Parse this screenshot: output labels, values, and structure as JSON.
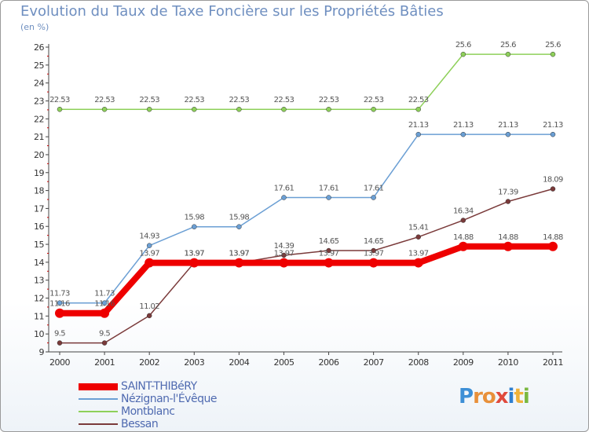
{
  "title": "Evolution du Taux de Taxe Foncière sur les Propriétés Bâties",
  "subtitle": "(en %)",
  "logo": {
    "letters": [
      {
        "ch": "P",
        "color": "#3d8fd6"
      },
      {
        "ch": "r",
        "color": "#e8903a"
      },
      {
        "ch": "o",
        "color": "#e8903a"
      },
      {
        "ch": "x",
        "color": "#e04a3c"
      },
      {
        "ch": "i",
        "color": "#2f7fd0"
      },
      {
        "ch": "t",
        "color": "#f0b23a"
      },
      {
        "ch": "i",
        "color": "#7ab840"
      }
    ]
  },
  "chart_data": {
    "type": "line",
    "title": "Evolution du Taux de Taxe Foncière sur les Propriétés Bâties",
    "ylabel": "(en %)",
    "xlabel": "",
    "ylim": [
      9,
      26
    ],
    "yticks": [
      9,
      10,
      11,
      12,
      13,
      14,
      15,
      16,
      17,
      18,
      19,
      20,
      21,
      22,
      23,
      24,
      25,
      26
    ],
    "grid": false,
    "legend_position": "bottom-left",
    "x": [
      "2000",
      "2001",
      "2002",
      "2003",
      "2004",
      "2005",
      "2006",
      "2007",
      "2008",
      "2009",
      "2010",
      "2011"
    ],
    "series": [
      {
        "name": "Montblanc",
        "color": "#8ed05a",
        "values": [
          22.53,
          22.53,
          22.53,
          22.53,
          22.53,
          22.53,
          22.53,
          22.53,
          22.53,
          25.6,
          25.6,
          25.6
        ],
        "labels": [
          "22.53",
          "22.53",
          "22.53",
          "22.53",
          "22.53",
          "22.53",
          "22.53",
          "22.53",
          "22.53",
          "25.6",
          "25.6",
          "25.6"
        ]
      },
      {
        "name": "Nézignan-l'Évêque",
        "color": "#6b9fd4",
        "values": [
          11.73,
          11.73,
          14.93,
          15.98,
          15.98,
          17.61,
          17.61,
          17.61,
          21.13,
          21.13,
          21.13,
          21.13
        ],
        "labels": [
          "11.73",
          "11.73",
          "14.93",
          "15.98",
          "15.98",
          "17.61",
          "17.61",
          "17.61",
          "21.13",
          "21.13",
          "21.13",
          "21.13"
        ]
      },
      {
        "name": "Bessan",
        "color": "#7a3a3a",
        "values": [
          9.5,
          9.5,
          11.02,
          13.97,
          13.97,
          14.39,
          14.65,
          14.65,
          15.41,
          16.34,
          17.39,
          18.09
        ],
        "labels": [
          "9.5",
          "9.5",
          "11.02",
          "13.97",
          "13.97",
          "14.39",
          "14.65",
          "14.65",
          "15.41",
          "16.34",
          "17.39",
          "18.09"
        ]
      },
      {
        "name": "SAINT-THIBéRY",
        "color": "#ee0000",
        "values": [
          11.16,
          11.16,
          13.97,
          13.97,
          13.97,
          13.97,
          13.97,
          13.97,
          13.97,
          14.88,
          14.88,
          14.88
        ],
        "labels": [
          "11.16",
          "11.16",
          "13.97",
          "13.97",
          "13.97",
          "13.97",
          "13.97",
          "13.97",
          "13.97",
          "14.88",
          "14.88",
          "14.88"
        ]
      }
    ],
    "legend": [
      "SAINT-THIBéRY",
      "Nézignan-l'Évêque",
      "Montblanc",
      "Bessan"
    ]
  }
}
